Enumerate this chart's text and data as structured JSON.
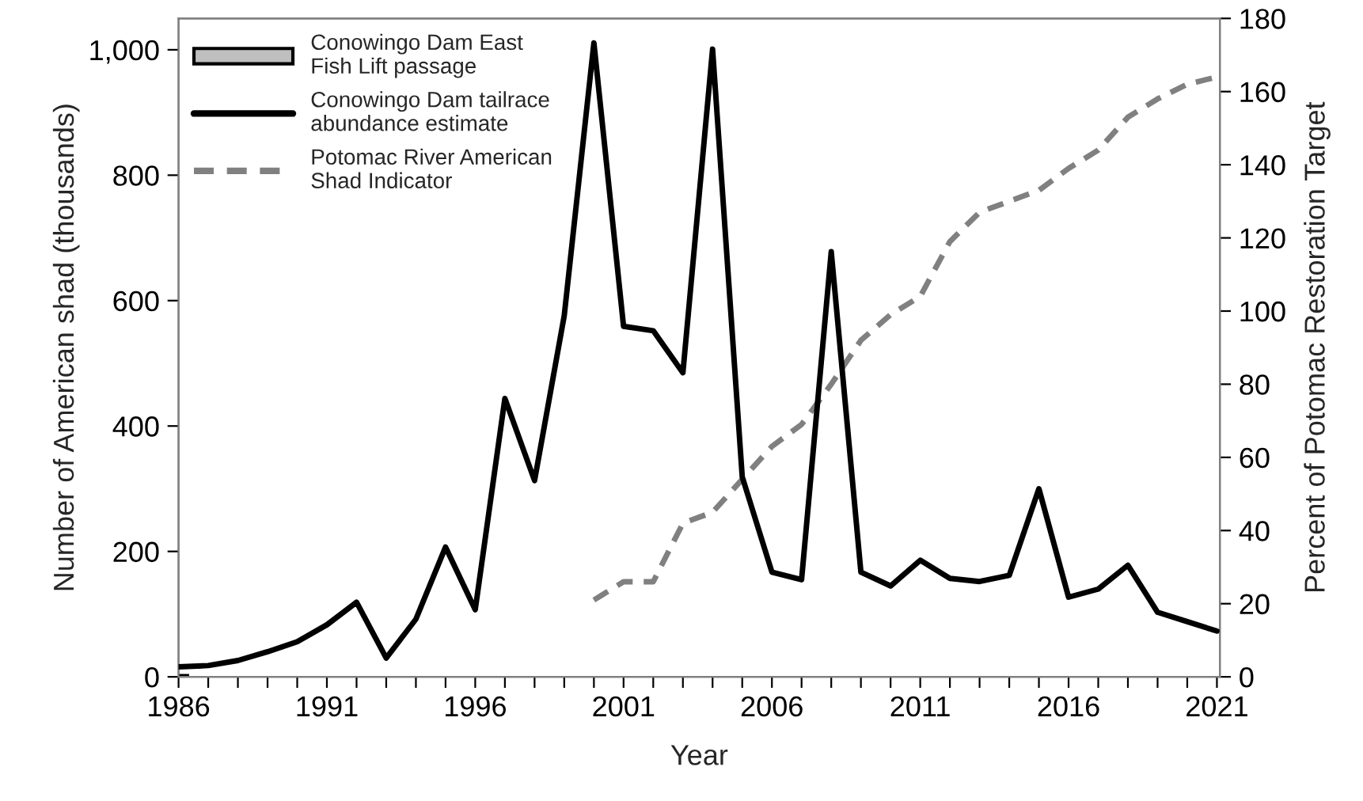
{
  "chart_data": {
    "type": "line",
    "xlabel": "Year",
    "ylabel": "Number of American shad (thousands)",
    "y2label": "Percent of Potomac Restoration Target",
    "series": [
      {
        "name": "Conowingo Dam East Fish Lift passage",
        "type": "bar",
        "color": "#bfbfbf",
        "x": [
          1986
        ],
        "values": [
          2
        ]
      },
      {
        "name": "Conowingo Dam tailrace abundance estimate",
        "color": "#000000",
        "line_style": "solid",
        "x": [
          1986,
          1987,
          1988,
          1989,
          1990,
          1991,
          1992,
          1993,
          1994,
          1995,
          1996,
          1997,
          1998,
          1999,
          2000,
          2001,
          2002,
          2003,
          2004,
          2005,
          2006,
          2007,
          2008,
          2009,
          2010,
          2011,
          2012,
          2013,
          2014,
          2015,
          2016,
          2017,
          2018,
          2019,
          2020,
          2021
        ],
        "values": [
          16,
          18,
          26,
          40,
          56,
          83,
          119,
          30,
          92,
          207,
          107,
          444,
          313,
          576,
          1011,
          559,
          552,
          485,
          1001,
          319,
          167,
          155,
          678,
          167,
          145,
          186,
          157,
          152,
          162,
          300,
          127,
          140,
          178,
          103,
          88,
          73
        ]
      },
      {
        "name": "Potomac River American Shad Indicator",
        "axis": "y2",
        "color": "#808080",
        "line_style": "dashed",
        "x": [
          2000,
          2001,
          2002,
          2003,
          2004,
          2005,
          2006,
          2007,
          2008,
          2009,
          2010,
          2011,
          2012,
          2013,
          2014,
          2015,
          2016,
          2017,
          2018,
          2019,
          2020,
          2021
        ],
        "values": [
          21,
          26,
          26,
          42,
          45,
          54,
          63,
          69,
          80,
          92,
          99,
          104,
          119,
          127,
          130,
          133,
          139,
          144,
          153,
          158,
          162,
          164
        ]
      }
    ],
    "xlim": [
      1986,
      2021.1
    ],
    "xticks": [
      1986,
      {
        "value": 1987,
        "label": null
      },
      {
        "value": 1988,
        "label": null
      },
      {
        "value": 1989,
        "label": null
      },
      {
        "value": 1990,
        "label": null
      },
      1991,
      {
        "value": 1992,
        "label": null
      },
      {
        "value": 1993,
        "label": null
      },
      {
        "value": 1994,
        "label": null
      },
      {
        "value": 1995,
        "label": null
      },
      1996,
      {
        "value": 1997,
        "label": null
      },
      {
        "value": 1998,
        "label": null
      },
      {
        "value": 1999,
        "label": null
      },
      {
        "value": 2000,
        "label": null
      },
      2001,
      {
        "value": 2002,
        "label": null
      },
      {
        "value": 2003,
        "label": null
      },
      {
        "value": 2004,
        "label": null
      },
      {
        "value": 2005,
        "label": null
      },
      2006,
      {
        "value": 2007,
        "label": null
      },
      {
        "value": 2008,
        "label": null
      },
      {
        "value": 2009,
        "label": null
      },
      {
        "value": 2010,
        "label": null
      },
      2011,
      {
        "value": 2012,
        "label": null
      },
      {
        "value": 2013,
        "label": null
      },
      {
        "value": 2014,
        "label": null
      },
      {
        "value": 2015,
        "label": null
      },
      2016,
      {
        "value": 2017,
        "label": null
      },
      {
        "value": 2018,
        "label": null
      },
      {
        "value": 2019,
        "label": null
      },
      {
        "value": 2020,
        "label": null
      },
      2021
    ],
    "ylim": [
      0,
      1050
    ],
    "yticks": [
      0,
      200,
      400,
      600,
      800,
      {
        "value": 1000,
        "label": "1,000"
      }
    ],
    "y2lim": [
      0,
      180
    ],
    "y2ticks": [
      0,
      20,
      40,
      60,
      80,
      100,
      120,
      140,
      160,
      180
    ],
    "legend": "top left",
    "grid": false,
    "marker": "none"
  }
}
